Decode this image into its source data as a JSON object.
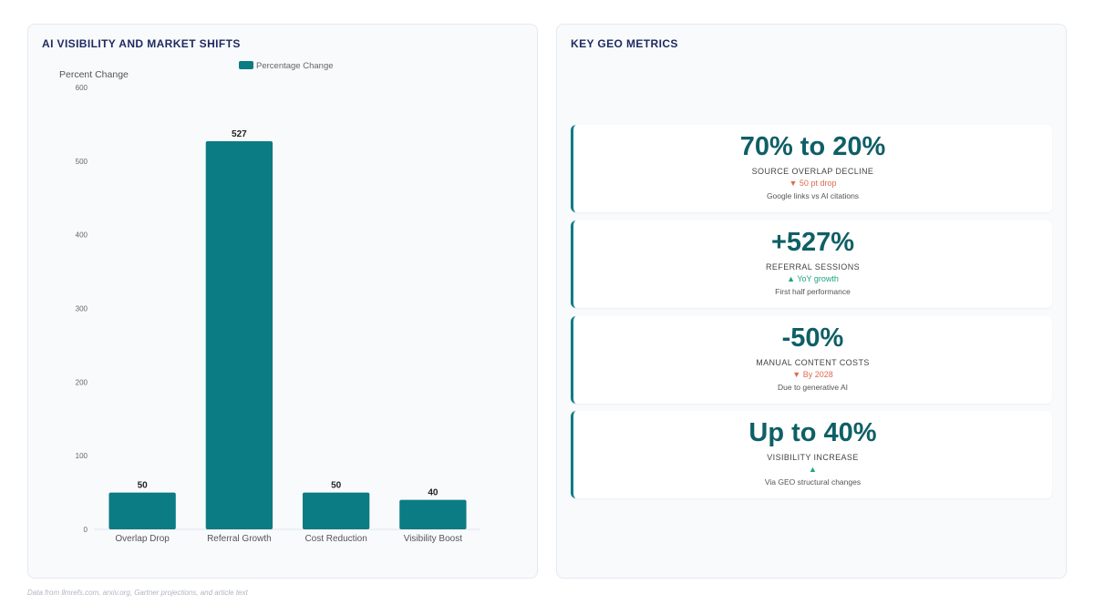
{
  "left_panel": {
    "title": "AI VISIBILITY AND MARKET SHIFTS"
  },
  "right_panel": {
    "title": "KEY GEO METRICS"
  },
  "chart_data": {
    "type": "bar",
    "categories": [
      "Overlap Drop",
      "Referral Growth",
      "Cost Reduction",
      "Visibility Boost"
    ],
    "series": [
      {
        "name": "Percentage Change",
        "values": [
          50,
          527,
          50,
          40
        ]
      }
    ],
    "ylabel": "Percent Change",
    "xlabel": "",
    "ylim": [
      0,
      600
    ],
    "yticks": [
      0,
      100,
      200,
      300,
      400,
      500,
      600
    ],
    "data_labels": [
      "50",
      "527",
      "50",
      "40"
    ],
    "legend": "top-center",
    "grid": false,
    "bar_color": "#0b7b84"
  },
  "metrics": [
    {
      "value": "70% to 20%",
      "label": "SOURCE OVERLAP DECLINE",
      "trend": "▼ 50 pt drop",
      "direction": "down",
      "sub": "Google links vs AI citations"
    },
    {
      "value": "+527%",
      "label": "REFERRAL SESSIONS",
      "trend": "▲ YoY growth",
      "direction": "up",
      "sub": "First half performance"
    },
    {
      "value": "-50%",
      "label": "MANUAL CONTENT COSTS",
      "trend": "▼ By 2028",
      "direction": "down",
      "sub": "Due to generative AI"
    },
    {
      "value": "Up to 40%",
      "label": "VISIBILITY INCREASE",
      "trend": "▲",
      "direction": "up",
      "sub": "Via GEO structural changes"
    }
  ],
  "footer": {
    "note": "Data from llmrefs.com, arxiv.org, Gartner projections, and article text"
  },
  "colors": {
    "accent": "#0b7b84",
    "title": "#1e2a5e",
    "down": "#e06a50",
    "up": "#1aa57f"
  }
}
